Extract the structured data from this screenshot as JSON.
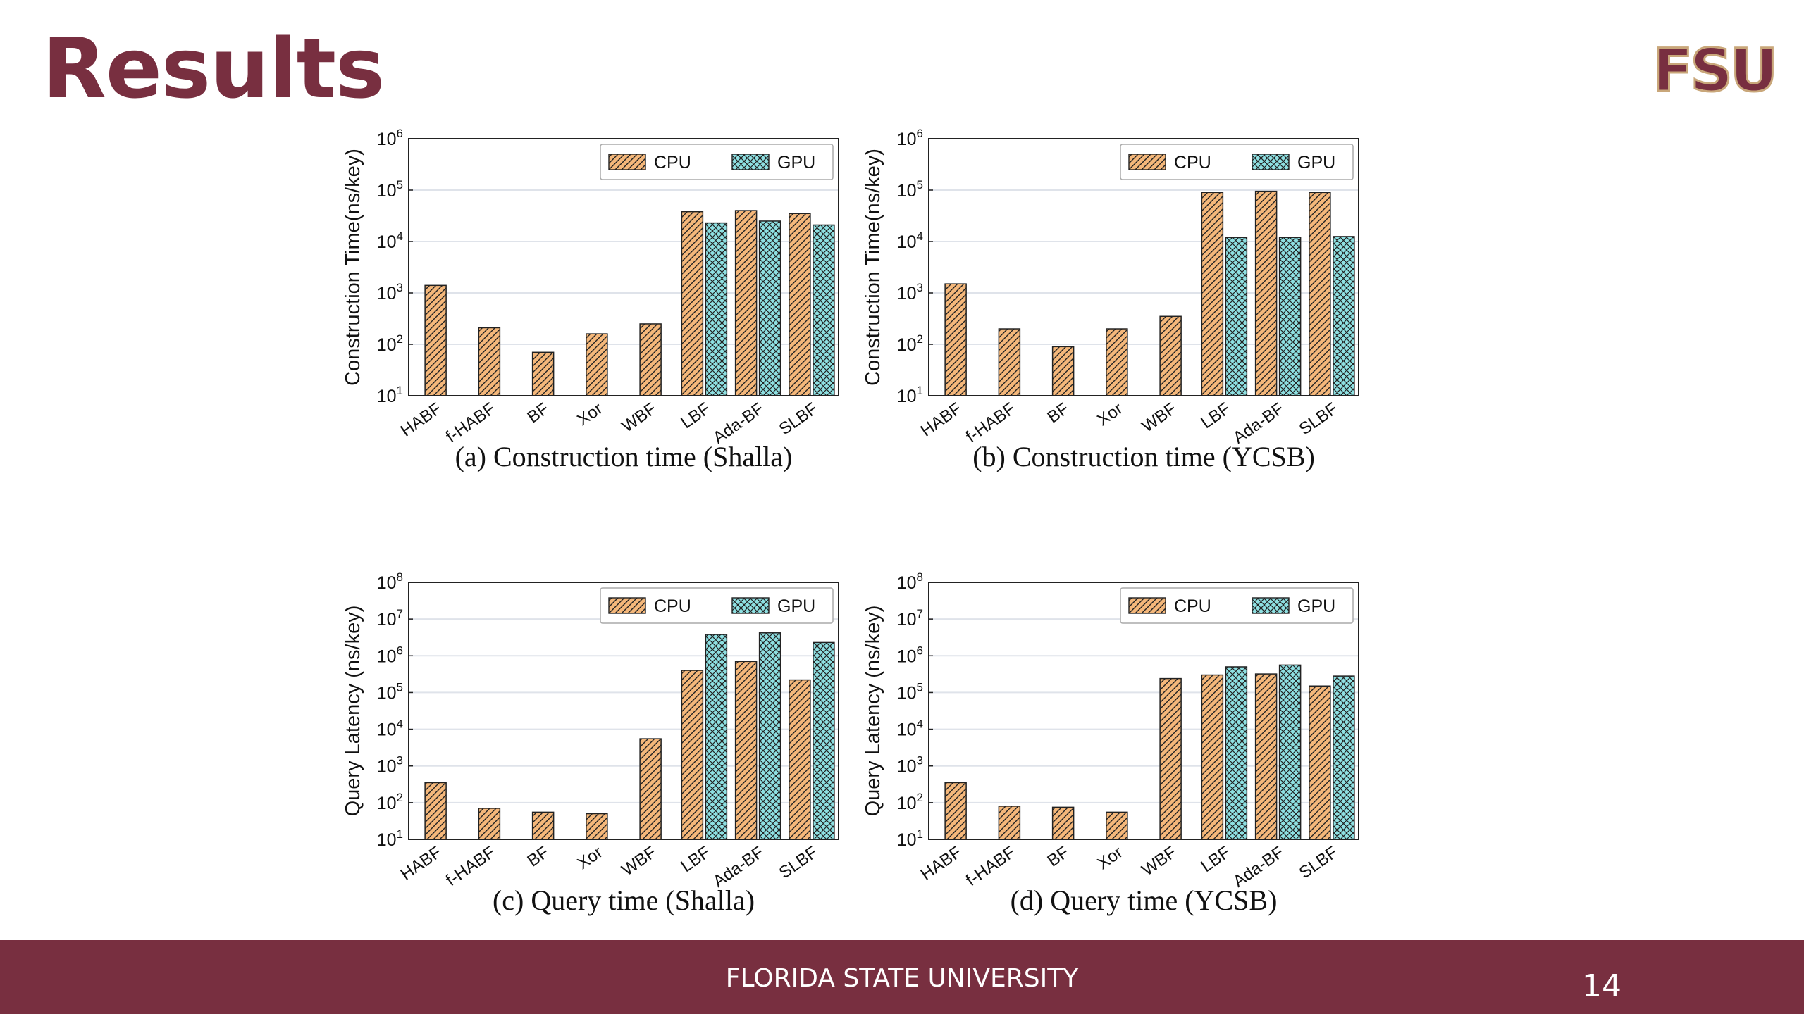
{
  "slide": {
    "title": "Results",
    "logo_text": "FSU",
    "footer_text": "FLORIDA STATE UNIVERSITY",
    "page_number": "14"
  },
  "colors": {
    "brand": "#782f40",
    "cpu": "#f4b77a",
    "gpu": "#8ee0e2"
  },
  "chart_data": [
    {
      "type": "bar",
      "caption": "(a) Construction time (Shalla)",
      "ylabel": "Construction Time(ns/key)",
      "yscale": "log",
      "ylim": [
        10,
        1000000
      ],
      "yticks": [
        {
          "v": 10,
          "m": "10",
          "e": "1"
        },
        {
          "v": 100,
          "m": "10",
          "e": "2"
        },
        {
          "v": 1000,
          "m": "10",
          "e": "3"
        },
        {
          "v": 10000,
          "m": "10",
          "e": "4"
        },
        {
          "v": 100000,
          "m": "10",
          "e": "5"
        },
        {
          "v": 1000000,
          "m": "10",
          "e": "6"
        }
      ],
      "categories": [
        "HABF",
        "f-HABF",
        "BF",
        "Xor",
        "WBF",
        "LBF",
        "Ada-BF",
        "SLBF"
      ],
      "legend_position": "top-right",
      "series": [
        {
          "name": "CPU",
          "values": [
            1400,
            210,
            70,
            160,
            250,
            38000,
            40000,
            35000
          ]
        },
        {
          "name": "GPU",
          "values": [
            null,
            null,
            null,
            null,
            null,
            23000,
            25000,
            21000
          ]
        }
      ]
    },
    {
      "type": "bar",
      "caption": "(b) Construction time (YCSB)",
      "ylabel": "Construction Time(ns/key)",
      "yscale": "log",
      "ylim": [
        10,
        1000000
      ],
      "yticks": [
        {
          "v": 10,
          "m": "10",
          "e": "1"
        },
        {
          "v": 100,
          "m": "10",
          "e": "2"
        },
        {
          "v": 1000,
          "m": "10",
          "e": "3"
        },
        {
          "v": 10000,
          "m": "10",
          "e": "4"
        },
        {
          "v": 100000,
          "m": "10",
          "e": "5"
        },
        {
          "v": 1000000,
          "m": "10",
          "e": "6"
        }
      ],
      "categories": [
        "HABF",
        "f-HABF",
        "BF",
        "Xor",
        "WBF",
        "LBF",
        "Ada-BF",
        "SLBF"
      ],
      "legend_position": "top-right",
      "series": [
        {
          "name": "CPU",
          "values": [
            1500,
            200,
            90,
            200,
            350,
            90000,
            95000,
            90000
          ]
        },
        {
          "name": "GPU",
          "values": [
            null,
            null,
            null,
            null,
            null,
            12000,
            12000,
            12500
          ]
        }
      ]
    },
    {
      "type": "bar",
      "caption": "(c) Query time (Shalla)",
      "ylabel": "Query Latency (ns/key)",
      "yscale": "log",
      "ylim": [
        10,
        100000000
      ],
      "yticks": [
        {
          "v": 10,
          "m": "10",
          "e": "1"
        },
        {
          "v": 100,
          "m": "10",
          "e": "2"
        },
        {
          "v": 1000,
          "m": "10",
          "e": "3"
        },
        {
          "v": 10000,
          "m": "10",
          "e": "4"
        },
        {
          "v": 100000,
          "m": "10",
          "e": "5"
        },
        {
          "v": 1000000,
          "m": "10",
          "e": "6"
        },
        {
          "v": 10000000,
          "m": "10",
          "e": "7"
        },
        {
          "v": 100000000,
          "m": "10",
          "e": "8"
        }
      ],
      "categories": [
        "HABF",
        "f-HABF",
        "BF",
        "Xor",
        "WBF",
        "LBF",
        "Ada-BF",
        "SLBF"
      ],
      "legend_position": "top-right",
      "series": [
        {
          "name": "CPU",
          "values": [
            350,
            70,
            55,
            50,
            5500,
            400000,
            700000,
            220000
          ]
        },
        {
          "name": "GPU",
          "values": [
            null,
            null,
            null,
            null,
            null,
            3800000,
            4200000,
            2300000
          ]
        }
      ]
    },
    {
      "type": "bar",
      "caption": "(d) Query time (YCSB)",
      "ylabel": "Query Latency (ns/key)",
      "yscale": "log",
      "ylim": [
        10,
        100000000
      ],
      "yticks": [
        {
          "v": 10,
          "m": "10",
          "e": "1"
        },
        {
          "v": 100,
          "m": "10",
          "e": "2"
        },
        {
          "v": 1000,
          "m": "10",
          "e": "3"
        },
        {
          "v": 10000,
          "m": "10",
          "e": "4"
        },
        {
          "v": 100000,
          "m": "10",
          "e": "5"
        },
        {
          "v": 1000000,
          "m": "10",
          "e": "6"
        },
        {
          "v": 10000000,
          "m": "10",
          "e": "7"
        },
        {
          "v": 100000000,
          "m": "10",
          "e": "8"
        }
      ],
      "categories": [
        "HABF",
        "f-HABF",
        "BF",
        "Xor",
        "WBF",
        "LBF",
        "Ada-BF",
        "SLBF"
      ],
      "legend_position": "top-right",
      "series": [
        {
          "name": "CPU",
          "values": [
            350,
            80,
            75,
            55,
            240000,
            300000,
            320000,
            150000
          ]
        },
        {
          "name": "GPU",
          "values": [
            null,
            null,
            null,
            null,
            null,
            500000,
            560000,
            280000
          ]
        }
      ]
    }
  ]
}
